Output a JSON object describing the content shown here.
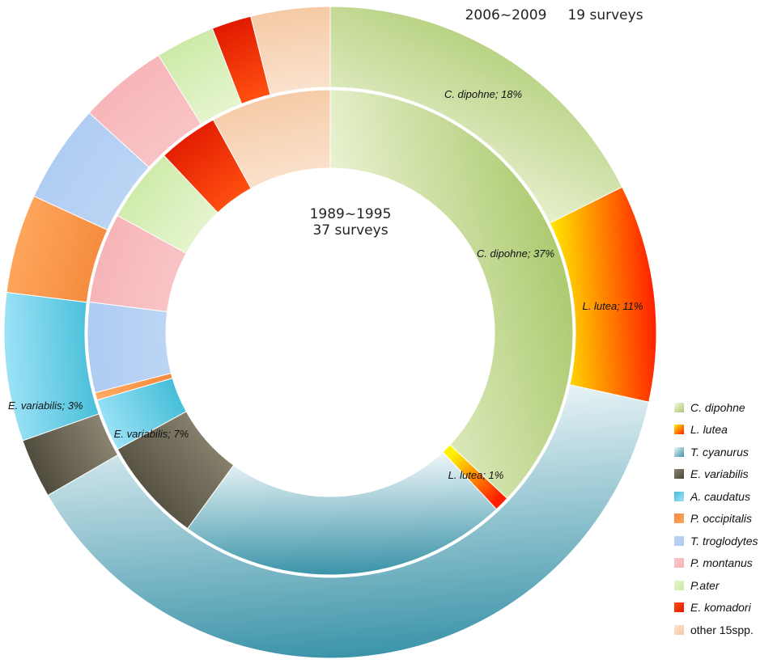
{
  "chart_data": {
    "type": "pie",
    "subtype": "double-donut",
    "rings": [
      {
        "ring": "outer",
        "title": "2006~2009",
        "subtitle": "19 surveys",
        "slices": [
          {
            "name": "C. dipohne",
            "value": 18,
            "label": "C. dipohne; 18%"
          },
          {
            "name": "L. lutea",
            "value": 11,
            "label": "L. lutea; 11%"
          },
          {
            "name": "T. cyanurus",
            "value": 39
          },
          {
            "name": "E. variabilis",
            "value": 3,
            "label": "E. variabilis; 3%"
          },
          {
            "name": "A. caudatus",
            "value": 7.5
          },
          {
            "name": "P. occipitalis",
            "value": 5
          },
          {
            "name": "T. troglodytes",
            "value": 5
          },
          {
            "name": "P. montanus",
            "value": 4.5
          },
          {
            "name": "P.ater",
            "value": 3
          },
          {
            "name": "E. komadori",
            "value": 2
          },
          {
            "name": "other 15spp.",
            "value": 4
          }
        ]
      },
      {
        "ring": "inner",
        "title": "1989~1995",
        "subtitle": "37 surveys",
        "slices": [
          {
            "name": "C. dipohne",
            "value": 37,
            "label": "C. dipohne; 37%"
          },
          {
            "name": "L. lutea",
            "value": 1,
            "label": "L. lutea; 1%"
          },
          {
            "name": "T. cyanurus",
            "value": 22
          },
          {
            "name": "E. variabilis",
            "value": 7,
            "label": "E. variabilis; 7%"
          },
          {
            "name": "A. caudatus",
            "value": 3.5
          },
          {
            "name": "P. occipitalis",
            "value": 0.5
          },
          {
            "name": "T. troglodytes",
            "value": 6
          },
          {
            "name": "P. montanus",
            "value": 6
          },
          {
            "name": "P.ater",
            "value": 5
          },
          {
            "name": "E. komadori",
            "value": 4
          },
          {
            "name": "other 15spp.",
            "value": 8
          }
        ]
      }
    ],
    "colors": {
      "C. dipohne": [
        "#a9c86a",
        "#f6fae6"
      ],
      "L. lutea": [
        "#ff1c00",
        "#fff200"
      ],
      "T. cyanurus": [
        "#3a93a8",
        "#f3f9fb"
      ],
      "E. variabilis": [
        "#4a4638",
        "#8c8672"
      ],
      "A. caudatus": [
        "#9fe3f8",
        "#45bed8"
      ],
      "P. occipitalis": [
        "#ffa860",
        "#f48a3c"
      ],
      "T. troglodytes": [
        "#aecbf2",
        "#bcd5f5"
      ],
      "P. montanus": [
        "#f6b3b6",
        "#f9c5c7"
      ],
      "P.ater": [
        "#cbe9a4",
        "#e6f5d0"
      ],
      "E. komadori": [
        "#e01800",
        "#ff5010"
      ],
      "other 15spp.": [
        "#f5c9a3",
        "#fbe3cf"
      ]
    },
    "legend": {
      "placement": "bottom-right",
      "items": [
        "C. dipohne",
        "L. lutea",
        "T. cyanurus",
        "E. variabilis",
        "A. caudatus",
        "P. occipitalis",
        "T. troglodytes",
        "P. montanus",
        "P.ater",
        "E. komadori",
        "other 15spp."
      ],
      "italic": [
        true,
        true,
        true,
        true,
        true,
        true,
        true,
        true,
        true,
        true,
        false
      ]
    }
  }
}
